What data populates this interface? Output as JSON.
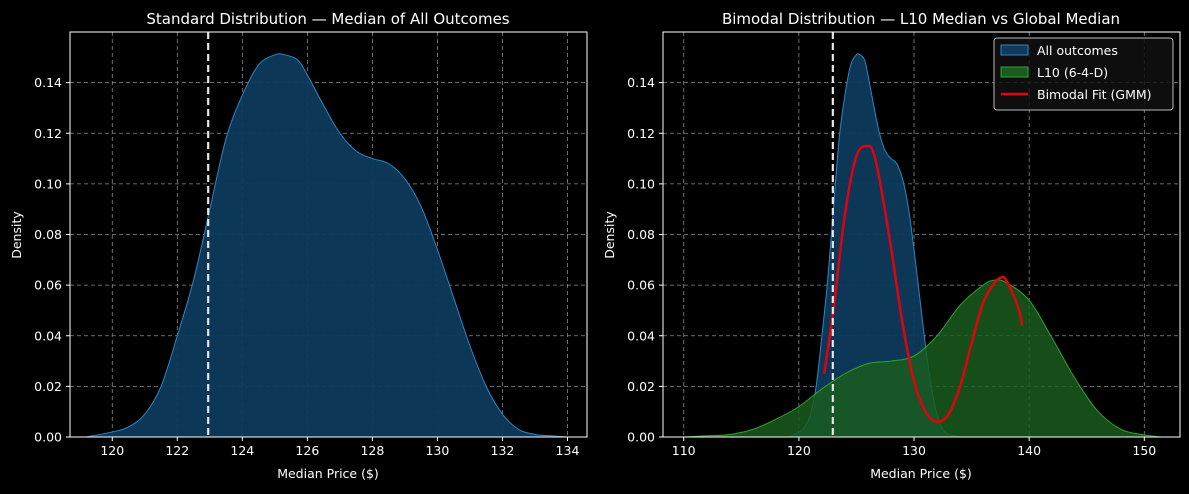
{
  "colors": {
    "background": "#000000",
    "axis": "#ffffff",
    "grid": "#8a8a8a",
    "all_fill": "#0e3a5c",
    "all_line": "#2e86c1",
    "l10_fill": "#1a5c1e",
    "l10_line": "#33a02c",
    "gmm": "#e3000f",
    "marker": "#e6e6e6"
  },
  "chart_data": [
    {
      "type": "area",
      "title": "Standard Distribution — Median of All Outcomes",
      "xlabel": "Median Price ($)",
      "ylabel": "Density",
      "xlim": [
        118.7,
        134.6
      ],
      "ylim": [
        0,
        0.16
      ],
      "xticks": [
        120,
        122,
        124,
        126,
        128,
        130,
        132,
        134
      ],
      "yticks": [
        0.0,
        0.02,
        0.04,
        0.06,
        0.08,
        0.1,
        0.12,
        0.14
      ],
      "ytick_labels": [
        "0.00",
        "0.02",
        "0.04",
        "0.06",
        "0.08",
        "0.10",
        "0.12",
        "0.14"
      ],
      "grid": true,
      "reference_line_x": 122.95,
      "series": [
        {
          "name": "All outcomes",
          "style": "all",
          "x": [
            119.2,
            120.0,
            120.5,
            121.0,
            121.5,
            122.0,
            122.5,
            123.0,
            123.5,
            124.0,
            124.5,
            125.0,
            125.3,
            125.7,
            126.0,
            126.5,
            127.0,
            127.5,
            128.0,
            128.5,
            129.0,
            129.5,
            130.0,
            130.5,
            131.0,
            131.5,
            132.0,
            132.5,
            133.0,
            133.5,
            134.0
          ],
          "values": [
            0.0,
            0.002,
            0.004,
            0.009,
            0.02,
            0.04,
            0.062,
            0.09,
            0.118,
            0.135,
            0.147,
            0.151,
            0.151,
            0.149,
            0.143,
            0.131,
            0.12,
            0.113,
            0.11,
            0.108,
            0.102,
            0.091,
            0.074,
            0.055,
            0.036,
            0.02,
            0.009,
            0.003,
            0.001,
            0.0005,
            0.0
          ]
        }
      ]
    },
    {
      "type": "area",
      "title": "Bimodal Distribution — L10 Median vs Global Median",
      "xlabel": "Median Price ($)",
      "ylabel": "Density",
      "xlim": [
        108.2,
        153.1
      ],
      "ylim": [
        0,
        0.16
      ],
      "xticks": [
        110,
        120,
        130,
        140,
        150
      ],
      "yticks": [
        0.0,
        0.02,
        0.04,
        0.06,
        0.08,
        0.1,
        0.12,
        0.14
      ],
      "ytick_labels": [
        "0.00",
        "0.02",
        "0.04",
        "0.06",
        "0.08",
        "0.10",
        "0.12",
        "0.14"
      ],
      "grid": true,
      "reference_line_x": 122.95,
      "legend": {
        "location": "top-right",
        "entries": [
          "All outcomes",
          "L10 (6-4-D)",
          "Bimodal Fit (GMM)"
        ]
      },
      "series": [
        {
          "name": "All outcomes",
          "style": "all",
          "x": [
            119.2,
            120.0,
            120.5,
            121.0,
            121.5,
            122.0,
            122.5,
            123.0,
            123.5,
            124.0,
            124.5,
            125.0,
            125.3,
            125.7,
            126.0,
            126.5,
            127.0,
            127.5,
            128.0,
            128.5,
            129.0,
            129.5,
            130.0,
            130.5,
            131.0,
            131.5,
            132.0,
            132.5,
            133.0,
            133.5,
            134.0
          ],
          "values": [
            0.0,
            0.002,
            0.004,
            0.009,
            0.02,
            0.04,
            0.062,
            0.09,
            0.118,
            0.135,
            0.147,
            0.151,
            0.151,
            0.149,
            0.143,
            0.131,
            0.12,
            0.113,
            0.11,
            0.108,
            0.102,
            0.091,
            0.074,
            0.055,
            0.036,
            0.02,
            0.009,
            0.003,
            0.001,
            0.0005,
            0.0
          ]
        },
        {
          "name": "L10 (6-4-D)",
          "style": "l10",
          "x": [
            110.0,
            112.0,
            114.0,
            116.0,
            118.0,
            120.0,
            122.0,
            124.0,
            126.0,
            128.0,
            130.0,
            132.0,
            134.0,
            136.0,
            137.0,
            138.0,
            140.0,
            142.0,
            144.0,
            146.0,
            148.0,
            150.0,
            151.5
          ],
          "values": [
            0.0,
            0.0005,
            0.001,
            0.003,
            0.007,
            0.012,
            0.019,
            0.025,
            0.029,
            0.03,
            0.032,
            0.04,
            0.052,
            0.06,
            0.062,
            0.061,
            0.054,
            0.039,
            0.023,
            0.01,
            0.003,
            0.0008,
            0.0
          ]
        },
        {
          "name": "Bimodal Fit (GMM)",
          "style": "gmm",
          "x": [
            122.2,
            123.0,
            124.0,
            125.0,
            126.0,
            126.5,
            127.0,
            128.0,
            129.0,
            130.0,
            131.0,
            132.0,
            133.0,
            134.0,
            135.0,
            136.0,
            137.0,
            137.6,
            138.0,
            139.0,
            139.4
          ],
          "values": [
            0.025,
            0.05,
            0.088,
            0.111,
            0.115,
            0.112,
            0.102,
            0.075,
            0.045,
            0.022,
            0.01,
            0.006,
            0.009,
            0.02,
            0.037,
            0.053,
            0.061,
            0.063,
            0.062,
            0.052,
            0.044
          ]
        }
      ]
    }
  ]
}
